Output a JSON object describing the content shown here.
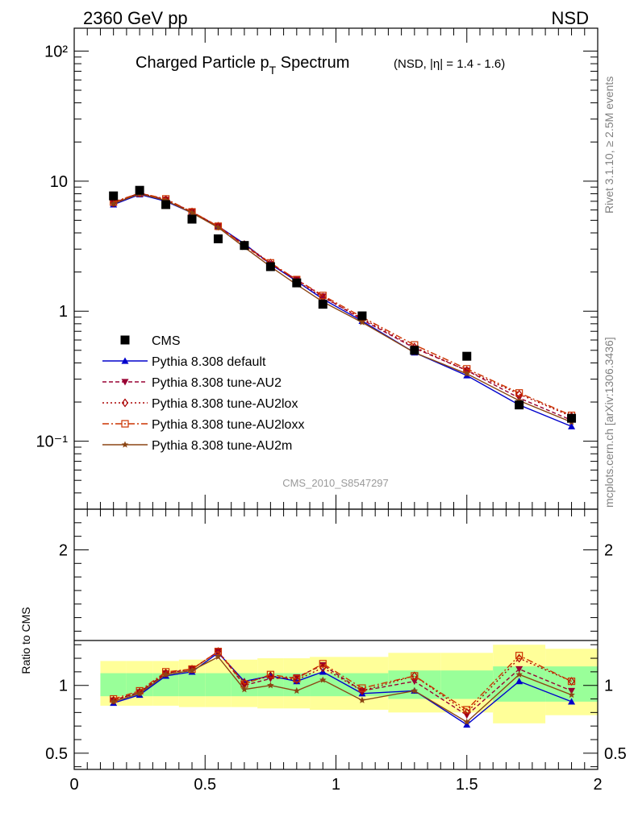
{
  "header": {
    "left": "2360 GeV pp",
    "right": "NSD"
  },
  "title": {
    "main": "Charged Particle p",
    "sub": "T",
    "main2": " Spectrum",
    "small": "(NSD, |η| = 1.4 - 1.6)"
  },
  "side_text": {
    "top": "Rivet 3.1.10, ≥ 2.5M events",
    "bottom": "mcplots.cern.ch [arXiv:1306.3436]"
  },
  "watermark": "CMS_2010_S8547297",
  "ratio_ylabel": "Ratio to CMS",
  "chart_data": [
    {
      "type": "scatter",
      "title": "Charged Particle pT Spectrum (NSD, |η| = 1.4 - 1.6)",
      "yscale": "log",
      "xlim": [
        0,
        2
      ],
      "ylim": [
        0.03,
        150
      ],
      "y_tick_labels": [
        "10⁻¹",
        "1",
        "10",
        "10²"
      ],
      "legend_position": "bottom-left",
      "x": [
        0.15,
        0.25,
        0.35,
        0.45,
        0.55,
        0.65,
        0.75,
        0.85,
        0.95,
        1.1,
        1.3,
        1.5,
        1.7,
        1.9
      ],
      "series": [
        {
          "name": "CMS",
          "color": "#000000",
          "marker": "square",
          "line": "none",
          "values": [
            7.7,
            8.5,
            6.6,
            5.1,
            3.6,
            3.2,
            2.2,
            1.65,
            1.13,
            0.92,
            0.5,
            0.45,
            0.19,
            0.15
          ]
        },
        {
          "name": "Pythia 8.308 default",
          "color": "#0000cc",
          "marker": "triangle-up",
          "line": "solid",
          "values": [
            6.6,
            7.9,
            7.0,
            5.7,
            4.5,
            3.3,
            2.3,
            1.7,
            1.24,
            0.84,
            0.48,
            0.32,
            0.19,
            0.13
          ]
        },
        {
          "name": "Pythia 8.308 tune-AU2",
          "color": "#990033",
          "marker": "triangle-down",
          "line": "dashed",
          "values": [
            6.8,
            8.1,
            7.2,
            5.8,
            4.5,
            3.2,
            2.3,
            1.75,
            1.3,
            0.86,
            0.52,
            0.35,
            0.215,
            0.145
          ]
        },
        {
          "name": "Pythia 8.308 tune-AU2lox",
          "color": "#aa0000",
          "marker": "diamond-open",
          "line": "dotted",
          "values": [
            6.8,
            8.1,
            7.2,
            5.8,
            4.5,
            3.25,
            2.35,
            1.7,
            1.28,
            0.88,
            0.53,
            0.35,
            0.23,
            0.155
          ]
        },
        {
          "name": "Pythia 8.308 tune-AU2loxx",
          "color": "#cc3300",
          "marker": "square-open",
          "line": "dashdot",
          "values": [
            6.9,
            8.1,
            7.3,
            5.8,
            4.5,
            3.2,
            2.35,
            1.75,
            1.32,
            0.9,
            0.55,
            0.36,
            0.235,
            0.158
          ]
        },
        {
          "name": "Pythia 8.308 tune-AU2m",
          "color": "#8b4513",
          "marker": "star",
          "line": "solid",
          "values": [
            6.7,
            8.0,
            7.1,
            5.7,
            4.4,
            3.1,
            2.2,
            1.6,
            1.18,
            0.82,
            0.48,
            0.33,
            0.205,
            0.14
          ]
        }
      ]
    },
    {
      "type": "line",
      "ylabel": "Ratio to CMS",
      "xlim": [
        0,
        2
      ],
      "ylim": [
        0.38,
        2.3
      ],
      "x_tick_labels": [
        "0",
        "0.5",
        "1",
        "1.5",
        "2"
      ],
      "y_tick_labels": [
        "0.5",
        "1",
        "2"
      ],
      "reference_line": 1,
      "band_x_edges": [
        0.1,
        0.2,
        0.3,
        0.4,
        0.5,
        0.6,
        0.7,
        0.8,
        0.9,
        1.0,
        1.2,
        1.4,
        1.6,
        1.8,
        2.0
      ],
      "band_inner": [
        [
          0.92,
          1.09
        ],
        [
          0.92,
          1.09
        ],
        [
          0.92,
          1.09
        ],
        [
          0.92,
          1.09
        ],
        [
          0.92,
          1.09
        ],
        [
          0.92,
          1.09
        ],
        [
          0.92,
          1.09
        ],
        [
          0.92,
          1.09
        ],
        [
          0.92,
          1.09
        ],
        [
          0.92,
          1.09
        ],
        [
          0.9,
          1.11
        ],
        [
          0.9,
          1.11
        ],
        [
          0.88,
          1.14
        ],
        [
          0.88,
          1.14
        ]
      ],
      "band_outer": [
        [
          0.85,
          1.18
        ],
        [
          0.85,
          1.18
        ],
        [
          0.85,
          1.18
        ],
        [
          0.84,
          1.19
        ],
        [
          0.84,
          1.19
        ],
        [
          0.84,
          1.19
        ],
        [
          0.83,
          1.2
        ],
        [
          0.83,
          1.2
        ],
        [
          0.82,
          1.21
        ],
        [
          0.82,
          1.21
        ],
        [
          0.8,
          1.24
        ],
        [
          0.8,
          1.24
        ],
        [
          0.72,
          1.3
        ],
        [
          0.78,
          1.27
        ]
      ],
      "x": [
        0.15,
        0.25,
        0.35,
        0.45,
        0.55,
        0.65,
        0.75,
        0.85,
        0.95,
        1.1,
        1.3,
        1.5,
        1.7,
        1.9
      ],
      "series": [
        {
          "name": "Pythia 8.308 default",
          "color": "#0000cc",
          "marker": "triangle-up",
          "line": "solid",
          "values": [
            0.87,
            0.93,
            1.07,
            1.1,
            1.24,
            1.03,
            1.07,
            1.03,
            1.1,
            0.94,
            0.96,
            0.71,
            1.03,
            0.88
          ]
        },
        {
          "name": "Pythia 8.308 tune-AU2",
          "color": "#990033",
          "marker": "triangle-down",
          "line": "dashed",
          "values": [
            0.89,
            0.95,
            1.09,
            1.12,
            1.25,
            1.0,
            1.05,
            1.06,
            1.15,
            0.96,
            1.03,
            0.78,
            1.12,
            0.96
          ]
        },
        {
          "name": "Pythia 8.308 tune-AU2lox",
          "color": "#aa0000",
          "marker": "diamond-open",
          "line": "dotted",
          "values": [
            0.89,
            0.95,
            1.09,
            1.12,
            1.25,
            1.02,
            1.07,
            1.04,
            1.13,
            0.96,
            1.07,
            0.8,
            1.2,
            1.03
          ]
        },
        {
          "name": "Pythia 8.308 tune-AU2loxx",
          "color": "#cc3300",
          "marker": "square-open",
          "line": "dashdot",
          "values": [
            0.9,
            0.96,
            1.1,
            1.12,
            1.25,
            1.01,
            1.08,
            1.05,
            1.16,
            0.98,
            1.07,
            0.82,
            1.22,
            1.03
          ]
        },
        {
          "name": "Pythia 8.308 tune-AU2m",
          "color": "#8b4513",
          "marker": "star",
          "line": "solid",
          "values": [
            0.88,
            0.94,
            1.08,
            1.11,
            1.21,
            0.97,
            1.0,
            0.96,
            1.04,
            0.89,
            0.96,
            0.73,
            1.08,
            0.93
          ]
        }
      ]
    }
  ]
}
